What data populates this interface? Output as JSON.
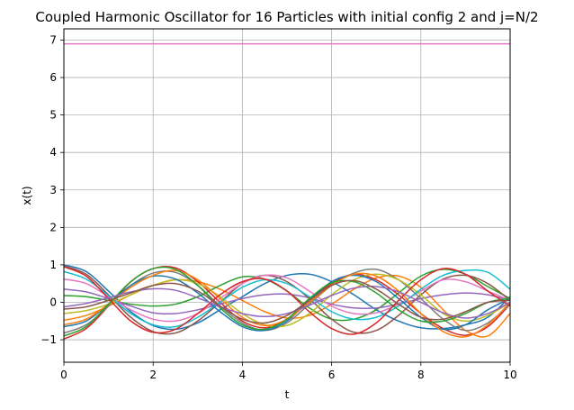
{
  "chart_data": {
    "type": "line",
    "title": "Coupled Harmonic Oscillator for 16 Particles with initial config 2 and j=N/2",
    "xlabel": "t",
    "ylabel": "x(t)",
    "xlim": [
      0,
      10
    ],
    "ylim": [
      -1.6,
      7.3
    ],
    "xticks": [
      0,
      2,
      4,
      6,
      8,
      10
    ],
    "yticks": [
      -1,
      0,
      1,
      2,
      3,
      4,
      5,
      6,
      7
    ],
    "grid": true,
    "legend": "none",
    "sample_interval": 0.5,
    "series": [
      {
        "color": "#1f77b4",
        "x": [
          0,
          0.5,
          1,
          1.5,
          2,
          2.5,
          3,
          3.5,
          4,
          4.5,
          5,
          5.5,
          6,
          6.5,
          7,
          7.5,
          8,
          8.5,
          9,
          9.5,
          10
        ],
        "y": [
          1.0,
          0.82,
          0.3,
          -0.25,
          -0.62,
          -0.72,
          -0.55,
          -0.2,
          0.15,
          0.5,
          0.72,
          0.75,
          0.55,
          0.2,
          -0.2,
          -0.5,
          -0.68,
          -0.7,
          -0.6,
          -0.4,
          0.15
        ]
      },
      {
        "color": "#ff7f0e",
        "x": [
          0,
          0.5,
          1,
          1.5,
          2,
          2.5,
          3,
          3.5,
          4,
          4.5,
          5,
          5.5,
          6,
          6.5,
          7,
          7.5,
          8,
          8.5,
          9,
          9.5,
          10
        ],
        "y": [
          -0.48,
          -0.35,
          -0.1,
          0.2,
          0.45,
          0.6,
          0.55,
          0.35,
          0.05,
          -0.25,
          -0.42,
          -0.35,
          -0.05,
          0.35,
          0.65,
          0.7,
          0.4,
          -0.2,
          -0.75,
          -0.9,
          -0.3
        ]
      },
      {
        "color": "#2ca02c",
        "x": [
          0,
          0.5,
          1,
          1.5,
          2,
          2.5,
          3,
          3.5,
          4,
          4.5,
          5,
          5.5,
          6,
          6.5,
          7,
          7.5,
          8,
          8.5,
          9,
          9.5,
          10
        ],
        "y": [
          0.18,
          0.15,
          0.05,
          -0.05,
          -0.1,
          -0.05,
          0.15,
          0.45,
          0.68,
          0.62,
          0.3,
          -0.15,
          -0.45,
          -0.45,
          -0.2,
          0.25,
          0.7,
          0.88,
          0.75,
          0.42,
          0.1
        ]
      },
      {
        "color": "#d62728",
        "x": [
          0,
          0.5,
          1,
          1.5,
          2,
          2.5,
          3,
          3.5,
          4,
          4.5,
          5,
          5.5,
          6,
          6.5,
          7,
          7.5,
          8,
          8.5,
          9,
          9.5,
          10
        ],
        "y": [
          -0.98,
          -0.7,
          -0.1,
          0.55,
          0.9,
          0.92,
          0.55,
          0.0,
          -0.5,
          -0.68,
          -0.45,
          0.05,
          0.5,
          0.75,
          0.6,
          0.2,
          -0.3,
          -0.7,
          -0.88,
          -0.65,
          -0.05
        ]
      },
      {
        "color": "#9467bd",
        "x": [
          0,
          0.5,
          1,
          1.5,
          2,
          2.5,
          3,
          3.5,
          4,
          4.5,
          5,
          5.5,
          6,
          6.5,
          7,
          7.5,
          8,
          8.5,
          9,
          9.5,
          10
        ],
        "y": [
          0.35,
          0.28,
          0.1,
          -0.1,
          -0.28,
          -0.3,
          -0.2,
          -0.05,
          0.1,
          0.2,
          0.22,
          0.12,
          -0.05,
          -0.15,
          -0.15,
          -0.05,
          0.1,
          0.2,
          0.25,
          0.2,
          0.05
        ]
      },
      {
        "color": "#8c564b",
        "x": [
          0,
          0.5,
          1,
          1.5,
          2,
          2.5,
          3,
          3.5,
          4,
          4.5,
          5,
          5.5,
          6,
          6.5,
          7,
          7.5,
          8,
          8.5,
          9,
          9.5,
          10
        ],
        "y": [
          0.97,
          0.75,
          0.2,
          -0.4,
          -0.78,
          -0.82,
          -0.5,
          0.0,
          0.5,
          0.72,
          0.55,
          0.1,
          -0.45,
          -0.8,
          -0.75,
          -0.35,
          0.2,
          0.62,
          0.72,
          0.5,
          0.05
        ]
      },
      {
        "color": "#e377c2",
        "x": [
          0,
          0.5,
          1,
          1.5,
          2,
          2.5,
          3,
          3.5,
          4,
          4.5,
          5,
          5.5,
          6,
          6.5,
          7,
          7.5,
          8,
          8.5,
          9,
          9.5,
          10
        ],
        "y": [
          0.62,
          0.5,
          0.15,
          -0.2,
          -0.45,
          -0.5,
          -0.3,
          0.1,
          0.5,
          0.72,
          0.65,
          0.3,
          -0.1,
          -0.3,
          -0.28,
          -0.05,
          0.3,
          0.6,
          0.55,
          0.3,
          0.05
        ]
      },
      {
        "color": "#7f7f7f",
        "x": [
          0,
          0.5,
          1,
          1.5,
          2,
          2.5,
          3,
          3.5,
          4,
          4.5,
          5,
          5.5,
          6,
          6.5,
          7,
          7.5,
          8,
          8.5,
          9,
          9.5,
          10
        ],
        "y": [
          -0.82,
          -0.6,
          -0.1,
          0.45,
          0.78,
          0.8,
          0.45,
          -0.1,
          -0.55,
          -0.75,
          -0.55,
          -0.05,
          0.45,
          0.78,
          0.88,
          0.6,
          0.1,
          -0.45,
          -0.75,
          -0.55,
          -0.05
        ]
      },
      {
        "color": "#bcbd22",
        "x": [
          0,
          0.5,
          1,
          1.5,
          2,
          2.5,
          3,
          3.5,
          4,
          4.5,
          5,
          5.5,
          6,
          6.5,
          7,
          7.5,
          8,
          8.5,
          9,
          9.5,
          10
        ],
        "y": [
          -0.3,
          -0.22,
          -0.05,
          0.2,
          0.45,
          0.6,
          0.5,
          0.15,
          -0.3,
          -0.6,
          -0.62,
          -0.3,
          0.2,
          0.6,
          0.75,
          0.6,
          0.2,
          -0.3,
          -0.5,
          -0.35,
          0.0
        ]
      },
      {
        "color": "#17becf",
        "x": [
          0,
          0.5,
          1,
          1.5,
          2,
          2.5,
          3,
          3.5,
          4,
          4.5,
          5,
          5.5,
          6,
          6.5,
          7,
          7.5,
          8,
          8.5,
          9,
          9.5,
          10
        ],
        "y": [
          0.82,
          0.62,
          0.18,
          -0.3,
          -0.6,
          -0.65,
          -0.4,
          0.0,
          0.4,
          0.6,
          0.5,
          0.15,
          -0.25,
          -0.45,
          -0.4,
          -0.1,
          0.35,
          0.72,
          0.85,
          0.8,
          0.35
        ]
      },
      {
        "color": "#1f77b4",
        "x": [
          0,
          0.5,
          1,
          1.5,
          2,
          2.5,
          3,
          3.5,
          4,
          4.5,
          5,
          5.5,
          6,
          6.5,
          7,
          7.5,
          8,
          8.5,
          9,
          9.5,
          10
        ],
        "y": [
          -0.65,
          -0.5,
          -0.05,
          0.45,
          0.7,
          0.62,
          0.25,
          -0.25,
          -0.65,
          -0.75,
          -0.5,
          0.05,
          0.55,
          0.72,
          0.55,
          0.1,
          -0.4,
          -0.72,
          -0.6,
          -0.2,
          0.1
        ]
      },
      {
        "color": "#ff7f0e",
        "x": [
          0,
          0.5,
          1,
          1.5,
          2,
          2.5,
          3,
          3.5,
          4,
          4.5,
          5,
          5.5,
          6,
          6.5,
          7,
          7.5,
          8,
          8.5,
          9,
          9.5,
          10
        ],
        "y": [
          -0.6,
          -0.45,
          -0.05,
          0.4,
          0.72,
          0.85,
          0.6,
          0.1,
          -0.4,
          -0.62,
          -0.45,
          0.0,
          0.45,
          0.75,
          0.7,
          0.3,
          -0.3,
          -0.78,
          -0.92,
          -0.6,
          0.0
        ]
      },
      {
        "color": "#2ca02c",
        "x": [
          0,
          0.5,
          1,
          1.5,
          2,
          2.5,
          3,
          3.5,
          4,
          4.5,
          5,
          5.5,
          6,
          6.5,
          7,
          7.5,
          8,
          8.5,
          9,
          9.5,
          10
        ],
        "y": [
          -0.9,
          -0.65,
          -0.05,
          0.55,
          0.9,
          0.88,
          0.45,
          -0.15,
          -0.6,
          -0.72,
          -0.45,
          0.1,
          0.52,
          0.55,
          0.25,
          -0.2,
          -0.5,
          -0.5,
          -0.3,
          0.0,
          0.1
        ]
      },
      {
        "color": "#d62728",
        "x": [
          0,
          0.5,
          1,
          1.5,
          2,
          2.5,
          3,
          3.5,
          4,
          4.5,
          5,
          5.5,
          6,
          6.5,
          7,
          7.5,
          8,
          8.5,
          9,
          9.5,
          10
        ],
        "y": [
          0.95,
          0.7,
          0.1,
          -0.5,
          -0.8,
          -0.72,
          -0.3,
          0.2,
          0.55,
          0.62,
          0.3,
          -0.25,
          -0.7,
          -0.85,
          -0.55,
          0.05,
          0.6,
          0.9,
          0.75,
          0.3,
          -0.1
        ]
      },
      {
        "color": "#9467bd",
        "x": [
          0,
          0.5,
          1,
          1.5,
          2,
          2.5,
          3,
          3.5,
          4,
          4.5,
          5,
          5.5,
          6,
          6.5,
          7,
          7.5,
          8,
          8.5,
          9,
          9.5,
          10
        ],
        "y": [
          -0.12,
          -0.03,
          0.12,
          0.28,
          0.36,
          0.32,
          0.12,
          -0.12,
          -0.3,
          -0.38,
          -0.3,
          -0.08,
          0.18,
          0.38,
          0.42,
          0.28,
          0.0,
          -0.28,
          -0.42,
          -0.3,
          0.0
        ]
      },
      {
        "color": "#8c564b",
        "x": [
          0,
          0.5,
          1,
          1.5,
          2,
          2.5,
          3,
          3.5,
          4,
          4.5,
          5,
          5.5,
          6,
          6.5,
          7,
          7.5,
          8,
          8.5,
          9,
          9.5,
          10
        ],
        "y": [
          -0.18,
          -0.12,
          0.05,
          0.25,
          0.45,
          0.5,
          0.3,
          -0.1,
          -0.45,
          -0.55,
          -0.35,
          0.05,
          0.45,
          0.58,
          0.35,
          -0.05,
          -0.4,
          -0.45,
          -0.25,
          0.0,
          0.05
        ]
      },
      {
        "color": "#e377c2",
        "x": [
          0,
          10
        ],
        "y": [
          6.9,
          6.9
        ]
      }
    ]
  }
}
